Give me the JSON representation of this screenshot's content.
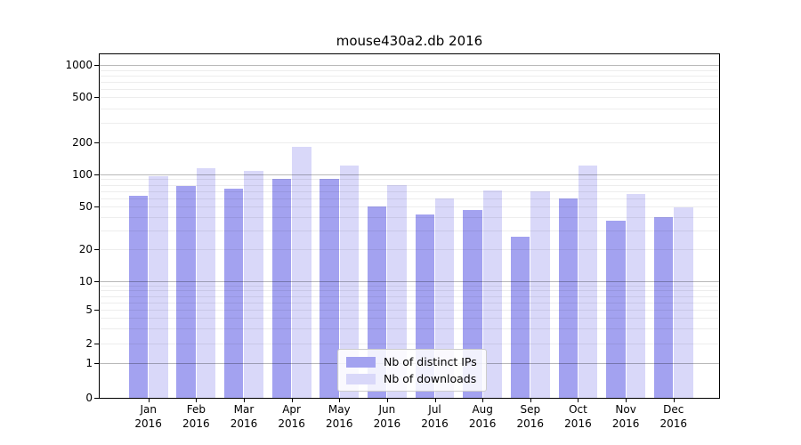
{
  "chart_data": {
    "type": "bar",
    "title": "mouse430a2.db 2016",
    "categories": [
      "Jan",
      "Feb",
      "Mar",
      "Apr",
      "May",
      "Jun",
      "Jul",
      "Aug",
      "Sep",
      "Oct",
      "Nov",
      "Dec"
    ],
    "year_label": "2016",
    "series": [
      {
        "name": "Nb of distinct IPs",
        "color": "#a3a2f0",
        "values": [
          63,
          78,
          73,
          90,
          91,
          50,
          42,
          46,
          26,
          59,
          37,
          40
        ]
      },
      {
        "name": "Nb of downloads",
        "color": "#d9d8f9",
        "values": [
          97,
          115,
          108,
          180,
          121,
          79,
          60,
          71,
          69,
          122,
          66,
          49
        ]
      }
    ],
    "xlabel": "",
    "ylabel": "",
    "yscale": "symlog",
    "y_ticks": [
      0,
      1,
      2,
      5,
      10,
      20,
      50,
      100,
      200,
      500,
      1000
    ],
    "ylim": [
      0,
      1265
    ],
    "grid": true,
    "legend_position": "lower center"
  }
}
